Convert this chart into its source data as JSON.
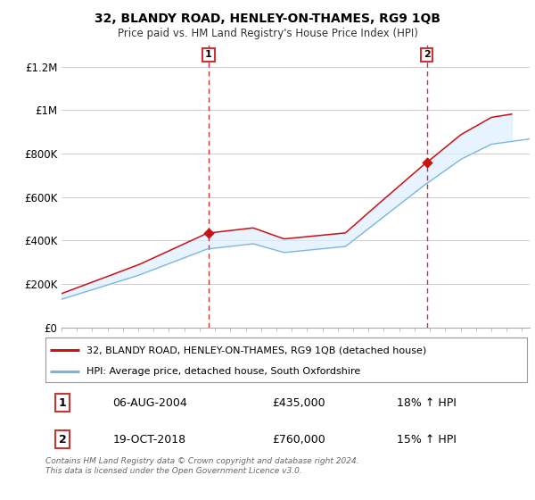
{
  "title": "32, BLANDY ROAD, HENLEY-ON-THAMES, RG9 1QB",
  "subtitle": "Price paid vs. HM Land Registry's House Price Index (HPI)",
  "legend_line1": "32, BLANDY ROAD, HENLEY-ON-THAMES, RG9 1QB (detached house)",
  "legend_line2": "HPI: Average price, detached house, South Oxfordshire",
  "transaction1_date": "06-AUG-2004",
  "transaction1_price": "£435,000",
  "transaction1_hpi": "18% ↑ HPI",
  "transaction2_date": "19-OCT-2018",
  "transaction2_price": "£760,000",
  "transaction2_hpi": "15% ↑ HPI",
  "footer": "Contains HM Land Registry data © Crown copyright and database right 2024.\nThis data is licensed under the Open Government Licence v3.0.",
  "hpi_color": "#7ab4d8",
  "price_color": "#cc1111",
  "fill_color": "#ddeeff",
  "dashed_line_color": "#cc3333",
  "grid_color": "#cccccc",
  "background_color": "#ffffff",
  "ylim": [
    0,
    1300000
  ],
  "yticks": [
    0,
    200000,
    400000,
    600000,
    800000,
    1000000,
    1200000
  ],
  "ytick_labels": [
    "£0",
    "£200K",
    "£400K",
    "£600K",
    "£800K",
    "£1M",
    "£1.2M"
  ],
  "year_start": 1995,
  "year_end": 2025,
  "transaction1_year": 2004.58,
  "transaction2_year": 2018.79,
  "transaction1_value": 435000,
  "transaction2_value": 760000
}
